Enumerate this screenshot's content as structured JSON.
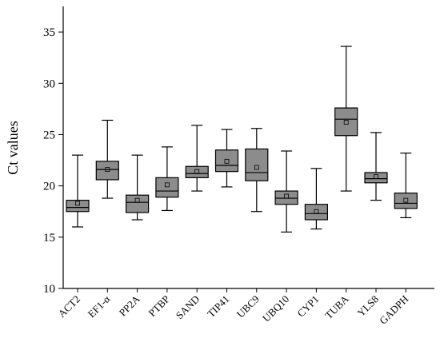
{
  "chart_data": {
    "type": "box",
    "title": "",
    "xlabel": "",
    "ylabel": "Ct values",
    "ylim": [
      10,
      37.5
    ],
    "yticks": [
      10,
      15,
      20,
      25,
      30,
      35
    ],
    "box_color": "#8c8c8c",
    "categories": [
      "ACT2",
      "EF1-α",
      "PP2A",
      "PTBP",
      "SAND",
      "TIP41",
      "UBC9",
      "UBQ10",
      "CYP1",
      "TUBA",
      "YLS8",
      "GADPH"
    ],
    "boxes": [
      {
        "min": 16.0,
        "q1": 17.5,
        "median": 17.9,
        "q3": 18.6,
        "max": 23.0,
        "mean": 18.3
      },
      {
        "min": 18.8,
        "q1": 20.6,
        "median": 21.6,
        "q3": 22.4,
        "max": 26.4,
        "mean": 21.6
      },
      {
        "min": 16.7,
        "q1": 17.4,
        "median": 18.4,
        "q3": 19.1,
        "max": 23.0,
        "mean": 18.6
      },
      {
        "min": 17.6,
        "q1": 18.9,
        "median": 19.5,
        "q3": 20.8,
        "max": 23.8,
        "mean": 20.1
      },
      {
        "min": 19.5,
        "q1": 20.8,
        "median": 21.2,
        "q3": 21.9,
        "max": 25.9,
        "mean": 21.4
      },
      {
        "min": 19.9,
        "q1": 21.4,
        "median": 22.0,
        "q3": 23.5,
        "max": 25.5,
        "mean": 22.4
      },
      {
        "min": 17.5,
        "q1": 20.5,
        "median": 21.3,
        "q3": 23.6,
        "max": 25.6,
        "mean": 21.8
      },
      {
        "min": 15.5,
        "q1": 18.2,
        "median": 18.8,
        "q3": 19.5,
        "max": 23.4,
        "mean": 19.0
      },
      {
        "min": 15.8,
        "q1": 16.7,
        "median": 17.3,
        "q3": 18.2,
        "max": 21.7,
        "mean": 17.5
      },
      {
        "min": 19.5,
        "q1": 24.9,
        "median": 26.5,
        "q3": 27.6,
        "max": 33.6,
        "mean": 26.2
      },
      {
        "min": 18.6,
        "q1": 20.3,
        "median": 20.7,
        "q3": 21.3,
        "max": 25.2,
        "mean": 20.9
      },
      {
        "min": 16.9,
        "q1": 17.8,
        "median": 18.3,
        "q3": 19.3,
        "max": 23.2,
        "mean": 18.6
      }
    ]
  }
}
